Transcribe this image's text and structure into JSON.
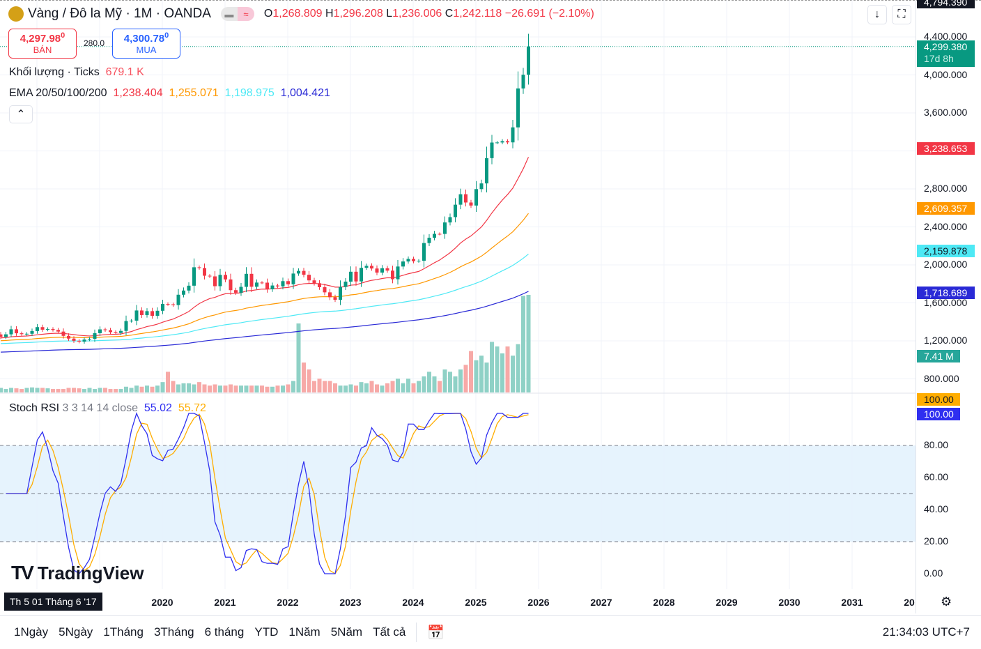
{
  "header": {
    "symbol": "Vàng / Đô la Mỹ · 1M · OANDA",
    "o_label": "O",
    "o": "1,268.809",
    "h_label": "H",
    "h": "1,296.208",
    "l_label": "L",
    "l": "1,236.006",
    "c_label": "C",
    "c": "1,242.118",
    "change": "−26.691 (−2.10%)"
  },
  "trade": {
    "sell_price": "4,297.98",
    "sell_sup": "0",
    "sell_label": "BÁN",
    "spread": "280.0",
    "buy_price": "4,300.78",
    "buy_sup": "0",
    "buy_label": "MUA"
  },
  "volume_legend": {
    "label": "Khối lượng · Ticks",
    "value": "679.1 K"
  },
  "ema_legend": {
    "label": "EMA 20/50/100/200",
    "v20": "1,238.404",
    "v50": "1,255.071",
    "v100": "1,198.975",
    "v200": "1,004.421"
  },
  "stoch_legend": {
    "label": "Stoch RSI",
    "params": "3 3 14 14 close",
    "k": "55.02",
    "d": "55.72"
  },
  "colors": {
    "up": "#089981",
    "down": "#f23645",
    "ema20": "#f23645",
    "ema50": "#ff9800",
    "ema100": "#4ee9f5",
    "ema200": "#2a2ad6",
    "k": "#2f2ff0",
    "d": "#ffad00"
  },
  "price_axis": [
    "4,400.000",
    "4,000.000",
    "3,600.000",
    "2,800.000",
    "2,400.000",
    "2,000.000",
    "1,600.000",
    "1,200.000",
    "800.000"
  ],
  "price_tags": {
    "top": "4,794.390",
    "current": "4,299.380",
    "countdown": "17d 8h",
    "ema20": "3,238.653",
    "ema50": "2,609.357",
    "ema100": "2,159.878",
    "ema200": "1,718.689",
    "volume": "7.41 M"
  },
  "stoch_axis": [
    "80.00",
    "60.00",
    "40.00",
    "20.00",
    "0.00"
  ],
  "stoch_tags": {
    "d": "100.00",
    "k": "100.00"
  },
  "time_axis": [
    "2020",
    "2021",
    "2022",
    "2023",
    "2024",
    "2025",
    "2026",
    "2027",
    "2028",
    "2029",
    "2030",
    "2031",
    "20"
  ],
  "crosshair_date": "Th 5 01 Tháng 6 '17",
  "watermark": "TradingView",
  "ranges": [
    "1Ngày",
    "5Ngày",
    "1Tháng",
    "3Tháng",
    "6 tháng",
    "YTD",
    "1Năm",
    "5Năm",
    "Tất cả"
  ],
  "clock": "21:34:03 UTC+7",
  "chart_data": {
    "type": "candlestick",
    "start": "2017-06",
    "interval": "1M",
    "close": [
      1242,
      1269,
      1322,
      1280,
      1271,
      1275,
      1303,
      1345,
      1318,
      1325,
      1315,
      1298,
      1253,
      1224,
      1201,
      1192,
      1214,
      1222,
      1281,
      1321,
      1313,
      1292,
      1283,
      1305,
      1409,
      1413,
      1520,
      1472,
      1513,
      1464,
      1517,
      1589,
      1585,
      1577,
      1686,
      1730,
      1781,
      1975,
      1967,
      1886,
      1879,
      1776,
      1895,
      1847,
      1734,
      1707,
      1769,
      1906,
      1770,
      1814,
      1813,
      1743,
      1783,
      1774,
      1829,
      1796,
      1909,
      1937,
      1896,
      1837,
      1807,
      1765,
      1711,
      1660,
      1633,
      1768,
      1824,
      1928,
      1826,
      1969,
      1990,
      1962,
      1919,
      1965,
      1940,
      1849,
      1983,
      2036,
      2063,
      2039,
      2044,
      2230,
      2286,
      2327,
      2326,
      2447,
      2503,
      2634,
      2744,
      2657,
      2625,
      2798,
      2858,
      3124,
      3288,
      3289,
      3303,
      3290,
      3448,
      3858,
      4002,
      4299
    ],
    "volume_m": [
      0.2,
      0.15,
      0.2,
      0.18,
      0.15,
      0.2,
      0.22,
      0.2,
      0.2,
      0.18,
      0.15,
      0.15,
      0.15,
      0.2,
      0.2,
      0.18,
      0.15,
      0.2,
      0.15,
      0.2,
      0.2,
      0.15,
      0.15,
      0.15,
      0.25,
      0.2,
      0.3,
      0.25,
      0.3,
      0.25,
      0.3,
      0.45,
      0.9,
      0.5,
      0.35,
      0.4,
      0.4,
      0.35,
      0.45,
      0.35,
      0.3,
      0.35,
      0.3,
      0.3,
      0.35,
      0.3,
      0.3,
      0.3,
      0.3,
      0.3,
      0.3,
      0.25,
      0.25,
      0.3,
      0.3,
      0.35,
      0.5,
      3.0,
      1.3,
      1.0,
      0.5,
      0.6,
      0.5,
      0.5,
      0.4,
      0.3,
      0.3,
      0.35,
      0.3,
      0.45,
      0.4,
      0.5,
      0.35,
      0.3,
      0.4,
      0.5,
      0.6,
      0.4,
      0.6,
      0.4,
      0.5,
      0.7,
      0.9,
      0.7,
      0.5,
      1.0,
      0.9,
      0.7,
      1.0,
      1.2,
      1.8,
      1.4,
      1.6,
      1.3,
      2.2,
      2.0,
      1.7,
      2.0,
      1.6,
      2.1,
      4.2,
      7.41
    ],
    "price_range": [
      800,
      4400
    ],
    "stoch_range": [
      0,
      100
    ],
    "stoch_bands": [
      20,
      80
    ]
  }
}
